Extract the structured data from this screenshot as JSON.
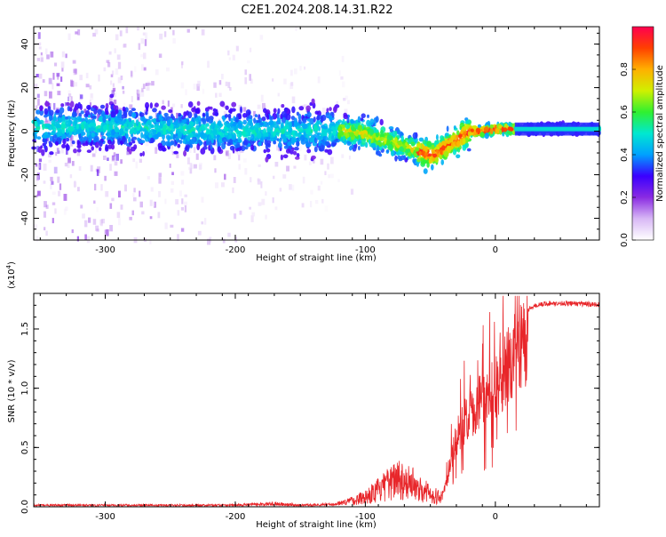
{
  "title": "C2E1.2024.208.14.31.R22",
  "chart_data": [
    {
      "type": "heatmap",
      "title": "C2E1.2024.208.14.31.R22",
      "xlabel": "Height of straight line (km)",
      "ylabel": "Frequency (Hz)",
      "xlim": [
        -355,
        80
      ],
      "ylim": [
        -50,
        48
      ],
      "xticks": [
        -300,
        -200,
        -100,
        0
      ],
      "yticks": [
        -40,
        -20,
        0,
        20,
        40
      ],
      "colorbar": {
        "label": "Normalized spectral amplitude",
        "range": [
          0,
          1
        ],
        "ticks": [
          0.0,
          0.2,
          0.4,
          0.6,
          0.8
        ],
        "colormap": [
          "#ffffff",
          "#d8b8f5",
          "#8a2be2",
          "#3a00ff",
          "#00a0ff",
          "#00e8d0",
          "#30f030",
          "#d0f000",
          "#ffb000",
          "#ff4000",
          "#ff0050"
        ]
      },
      "centerline": [
        {
          "x": -355,
          "y": 2
        },
        {
          "x": -300,
          "y": 2
        },
        {
          "x": -250,
          "y": 1
        },
        {
          "x": -200,
          "y": 0
        },
        {
          "x": -150,
          "y": 0
        },
        {
          "x": -120,
          "y": 0
        },
        {
          "x": -100,
          "y": -1
        },
        {
          "x": -90,
          "y": -3
        },
        {
          "x": -80,
          "y": -5
        },
        {
          "x": -70,
          "y": -7
        },
        {
          "x": -60,
          "y": -9
        },
        {
          "x": -50,
          "y": -11
        },
        {
          "x": -45,
          "y": -10
        },
        {
          "x": -40,
          "y": -8
        },
        {
          "x": -35,
          "y": -6
        },
        {
          "x": -30,
          "y": -4
        },
        {
          "x": -25,
          "y": -2
        },
        {
          "x": -20,
          "y": 0
        },
        {
          "x": -10,
          "y": 0
        },
        {
          "x": 0,
          "y": 1
        },
        {
          "x": 10,
          "y": 1
        },
        {
          "x": 20,
          "y": 1
        },
        {
          "x": 40,
          "y": 1
        },
        {
          "x": 80,
          "y": 1
        }
      ]
    },
    {
      "type": "line",
      "xlabel": "Height of straight line (km)",
      "ylabel": "SNR (10 * v/v)",
      "yscale_label": "(x10",
      "yscale_exp": "4",
      "xlim": [
        -355,
        80
      ],
      "ylim": [
        0,
        1.8
      ],
      "xticks": [
        -300,
        -200,
        -100,
        0
      ],
      "yticks": [
        0.0,
        0.5,
        1.0,
        1.5
      ],
      "ytick_labels": [
        "0.0",
        "0.5",
        "1.0",
        "1.5"
      ],
      "series": [
        {
          "color": "#e8262a",
          "envelope": [
            {
              "x": -355,
              "y": 0.02
            },
            {
              "x": -200,
              "y": 0.02
            },
            {
              "x": -170,
              "y": 0.04
            },
            {
              "x": -150,
              "y": 0.02
            },
            {
              "x": -125,
              "y": 0.03
            },
            {
              "x": -110,
              "y": 0.08
            },
            {
              "x": -100,
              "y": 0.14
            },
            {
              "x": -90,
              "y": 0.22
            },
            {
              "x": -80,
              "y": 0.32
            },
            {
              "x": -75,
              "y": 0.42
            },
            {
              "x": -70,
              "y": 0.35
            },
            {
              "x": -60,
              "y": 0.28
            },
            {
              "x": -50,
              "y": 0.18
            },
            {
              "x": -42,
              "y": 0.12
            },
            {
              "x": -38,
              "y": 0.22
            },
            {
              "x": -34,
              "y": 0.45
            },
            {
              "x": -30,
              "y": 0.7
            },
            {
              "x": -25,
              "y": 0.85
            },
            {
              "x": -20,
              "y": 0.95
            },
            {
              "x": -15,
              "y": 1.0
            },
            {
              "x": -10,
              "y": 1.1
            },
            {
              "x": -5,
              "y": 1.15
            },
            {
              "x": 0,
              "y": 1.2
            },
            {
              "x": 5,
              "y": 1.3
            },
            {
              "x": 10,
              "y": 1.45
            },
            {
              "x": 15,
              "y": 1.57
            },
            {
              "x": 20,
              "y": 1.64
            },
            {
              "x": 30,
              "y": 1.7
            },
            {
              "x": 40,
              "y": 1.72
            },
            {
              "x": 55,
              "y": 1.72
            },
            {
              "x": 80,
              "y": 1.71
            }
          ]
        }
      ]
    }
  ]
}
